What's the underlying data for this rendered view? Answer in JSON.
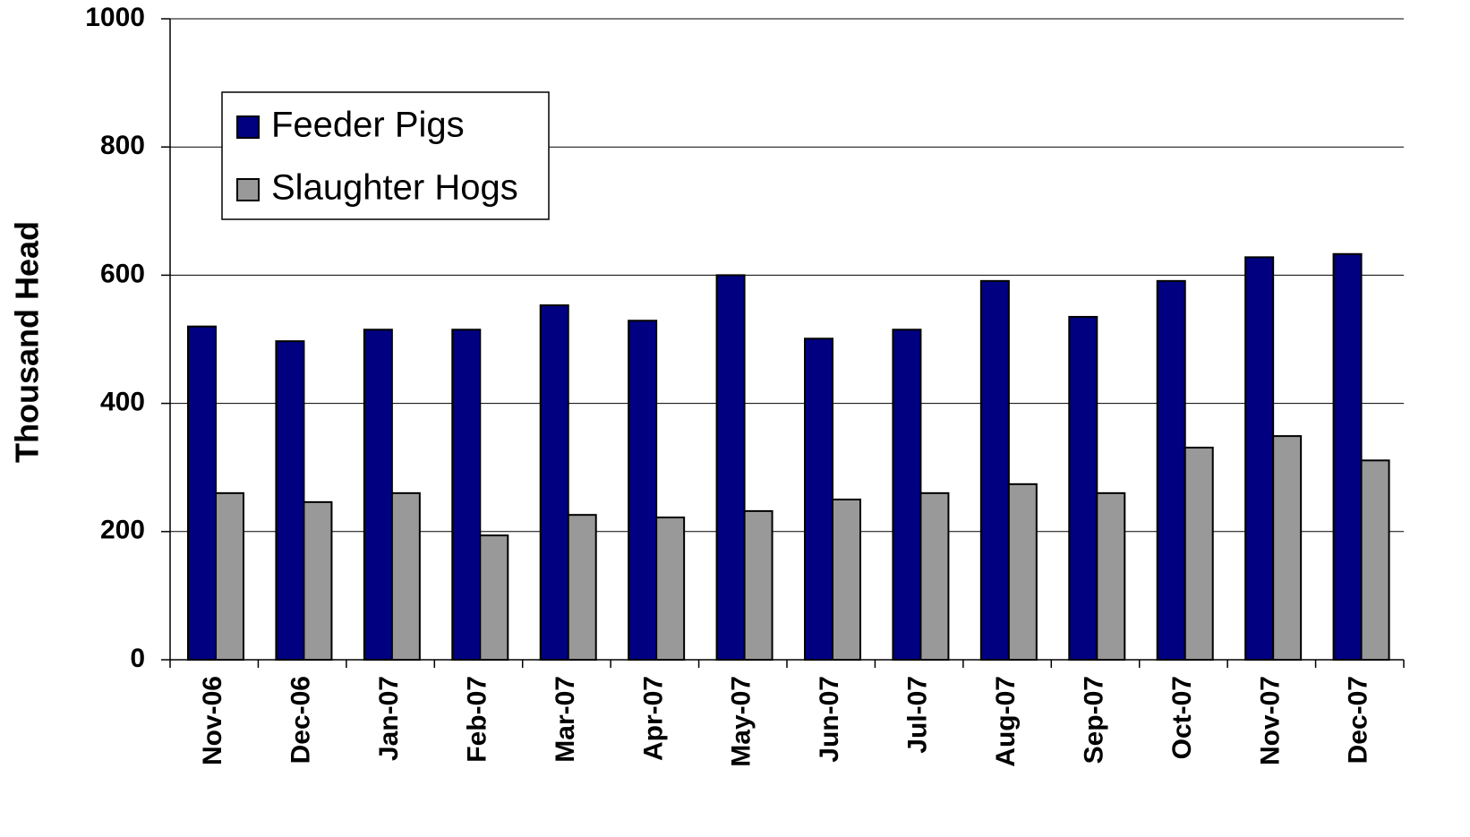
{
  "chart_data": {
    "type": "bar",
    "y_label": "Thousand Head",
    "categories": [
      "Nov-06",
      "Dec-06",
      "Jan-07",
      "Feb-07",
      "Mar-07",
      "Apr-07",
      "May-07",
      "Jun-07",
      "Jul-07",
      "Aug-07",
      "Sep-07",
      "Oct-07",
      "Nov-07",
      "Dec-07"
    ],
    "series": [
      {
        "name": "Feeder Pigs",
        "color": "#000080",
        "values": [
          520,
          497,
          515,
          515,
          553,
          529,
          600,
          501,
          515,
          591,
          535,
          591,
          628,
          633
        ]
      },
      {
        "name": "Slaughter Hogs",
        "color": "#999999",
        "values": [
          260,
          246,
          260,
          194,
          226,
          222,
          232,
          250,
          260,
          274,
          260,
          331,
          349,
          311
        ]
      }
    ],
    "ylim": [
      0,
      1000
    ],
    "yticks": [
      0,
      200,
      400,
      600,
      800,
      1000
    ],
    "grid": true,
    "legend": "upper left"
  }
}
